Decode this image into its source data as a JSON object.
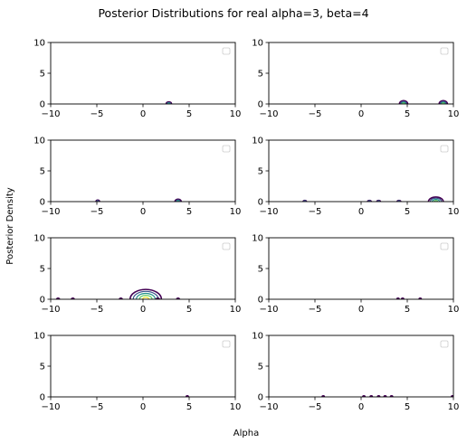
{
  "figure": {
    "title": "Posterior Distributions for real alpha=3, beta=4",
    "xlabel": "Alpha",
    "ylabel": "Posterior Density"
  },
  "colors": {
    "axes": "#000000",
    "background": "#ffffff",
    "contour_levels": [
      "#440154",
      "#3b528b",
      "#21918c",
      "#5ec962",
      "#fde725"
    ]
  },
  "chart_data": [
    {
      "type": "contour",
      "xlim": [
        -10,
        10
      ],
      "ylim": [
        0,
        10
      ],
      "xticks": [
        -10,
        -5,
        0,
        5,
        10
      ],
      "xtick_labels": [
        "−10",
        "−5",
        "0",
        "5",
        "10"
      ],
      "yticks": [
        0,
        5,
        10
      ],
      "ytick_labels": [
        "0",
        "5",
        "10"
      ],
      "legend": "top-right, empty",
      "peaks": [
        {
          "x": 2.8,
          "y": 0,
          "w": 0.3,
          "h": 0.35,
          "levels": 3
        }
      ]
    },
    {
      "type": "contour",
      "xlim": [
        -10,
        10
      ],
      "ylim": [
        0,
        10
      ],
      "xticks": [
        -10,
        -5,
        0,
        5,
        10
      ],
      "xtick_labels": [
        "−10",
        "−5",
        "0",
        "5",
        "10"
      ],
      "yticks": [
        0,
        5,
        10
      ],
      "ytick_labels": [
        "0",
        "5",
        "10"
      ],
      "legend": "top-right, empty",
      "peaks": [
        {
          "x": 4.6,
          "y": 0,
          "w": 0.45,
          "h": 0.55,
          "levels": 4
        },
        {
          "x": 8.9,
          "y": 0,
          "w": 0.45,
          "h": 0.55,
          "levels": 4
        }
      ]
    },
    {
      "type": "contour",
      "xlim": [
        -10,
        10
      ],
      "ylim": [
        0,
        10
      ],
      "xticks": [
        -10,
        -5,
        0,
        5,
        10
      ],
      "xtick_labels": [
        "−10",
        "−5",
        "0",
        "5",
        "10"
      ],
      "yticks": [
        0,
        5,
        10
      ],
      "ytick_labels": [
        "0",
        "5",
        "10"
      ],
      "legend": "top-right, empty",
      "peaks": [
        {
          "x": -4.9,
          "y": 0,
          "w": 0.2,
          "h": 0.25,
          "levels": 2
        },
        {
          "x": 3.8,
          "y": 0,
          "w": 0.35,
          "h": 0.4,
          "levels": 3
        }
      ]
    },
    {
      "type": "contour",
      "xlim": [
        -10,
        10
      ],
      "ylim": [
        0,
        10
      ],
      "xticks": [
        -10,
        -5,
        0,
        5,
        10
      ],
      "xtick_labels": [
        "−10",
        "−5",
        "0",
        "5",
        "10"
      ],
      "yticks": [
        0,
        5,
        10
      ],
      "ytick_labels": [
        "0",
        "5",
        "10"
      ],
      "legend": "top-right, empty",
      "peaks": [
        {
          "x": -6.1,
          "y": 0,
          "w": 0.18,
          "h": 0.2,
          "levels": 2
        },
        {
          "x": 0.9,
          "y": 0,
          "w": 0.2,
          "h": 0.2,
          "levels": 2
        },
        {
          "x": 1.9,
          "y": 0,
          "w": 0.2,
          "h": 0.2,
          "levels": 2
        },
        {
          "x": 4.1,
          "y": 0,
          "w": 0.2,
          "h": 0.2,
          "levels": 2
        },
        {
          "x": 8.1,
          "y": 0,
          "w": 0.8,
          "h": 0.75,
          "levels": 4
        }
      ]
    },
    {
      "type": "contour",
      "xlim": [
        -10,
        10
      ],
      "ylim": [
        0,
        10
      ],
      "xticks": [
        -10,
        -5,
        0,
        5,
        10
      ],
      "xtick_labels": [
        "−10",
        "−5",
        "0",
        "5",
        "10"
      ],
      "yticks": [
        0,
        5,
        10
      ],
      "ytick_labels": [
        "0",
        "5",
        "10"
      ],
      "legend": "top-right, empty",
      "peaks": [
        {
          "x": -9.2,
          "y": 0,
          "w": 0.15,
          "h": 0.15,
          "levels": 1
        },
        {
          "x": -7.6,
          "y": 0,
          "w": 0.15,
          "h": 0.15,
          "levels": 1
        },
        {
          "x": -2.4,
          "y": 0,
          "w": 0.15,
          "h": 0.15,
          "levels": 1
        },
        {
          "x": 0.3,
          "y": 0,
          "w": 1.7,
          "h": 1.6,
          "levels": 5
        },
        {
          "x": 1.6,
          "y": 0,
          "w": 0.18,
          "h": 0.15,
          "levels": 1
        },
        {
          "x": 3.8,
          "y": 0,
          "w": 0.15,
          "h": 0.15,
          "levels": 1
        }
      ]
    },
    {
      "type": "contour",
      "xlim": [
        -10,
        10
      ],
      "ylim": [
        0,
        10
      ],
      "xticks": [
        -10,
        -5,
        0,
        5,
        10
      ],
      "xtick_labels": [
        "−10",
        "−5",
        "0",
        "5",
        "10"
      ],
      "yticks": [
        0,
        5,
        10
      ],
      "ytick_labels": [
        "0",
        "5",
        "10"
      ],
      "legend": "top-right, empty",
      "peaks": [
        {
          "x": 4.0,
          "y": 0,
          "w": 0.12,
          "h": 0.1,
          "levels": 1
        },
        {
          "x": 4.5,
          "y": 0,
          "w": 0.12,
          "h": 0.1,
          "levels": 1
        },
        {
          "x": 6.4,
          "y": 0,
          "w": 0.12,
          "h": 0.1,
          "levels": 1
        }
      ]
    },
    {
      "type": "contour",
      "xlim": [
        -10,
        10
      ],
      "ylim": [
        0,
        10
      ],
      "xticks": [
        -10,
        -5,
        0,
        5,
        10
      ],
      "xtick_labels": [
        "−10",
        "−5",
        "0",
        "5",
        "10"
      ],
      "yticks": [
        0,
        5,
        10
      ],
      "ytick_labels": [
        "0",
        "5",
        "10"
      ],
      "legend": "top-right, empty",
      "peaks": [
        {
          "x": 4.8,
          "y": 0,
          "w": 0.12,
          "h": 0.1,
          "levels": 1
        }
      ]
    },
    {
      "type": "contour",
      "xlim": [
        -10,
        10
      ],
      "ylim": [
        0,
        10
      ],
      "xticks": [
        -10,
        -5,
        0,
        5,
        10
      ],
      "xtick_labels": [
        "−10",
        "−5",
        "0",
        "5",
        "10"
      ],
      "yticks": [
        0,
        5,
        10
      ],
      "ytick_labels": [
        "0",
        "5",
        "10"
      ],
      "legend": "top-right, empty",
      "peaks": [
        {
          "x": -4.1,
          "y": 0,
          "w": 0.12,
          "h": 0.1,
          "levels": 1
        },
        {
          "x": 0.3,
          "y": 0,
          "w": 0.12,
          "h": 0.1,
          "levels": 1
        },
        {
          "x": 1.1,
          "y": 0,
          "w": 0.12,
          "h": 0.1,
          "levels": 1
        },
        {
          "x": 1.9,
          "y": 0,
          "w": 0.12,
          "h": 0.1,
          "levels": 1
        },
        {
          "x": 2.6,
          "y": 0,
          "w": 0.12,
          "h": 0.1,
          "levels": 1
        },
        {
          "x": 3.3,
          "y": 0,
          "w": 0.12,
          "h": 0.1,
          "levels": 1
        },
        {
          "x": 9.9,
          "y": 0,
          "w": 0.12,
          "h": 0.1,
          "levels": 1
        }
      ]
    }
  ]
}
